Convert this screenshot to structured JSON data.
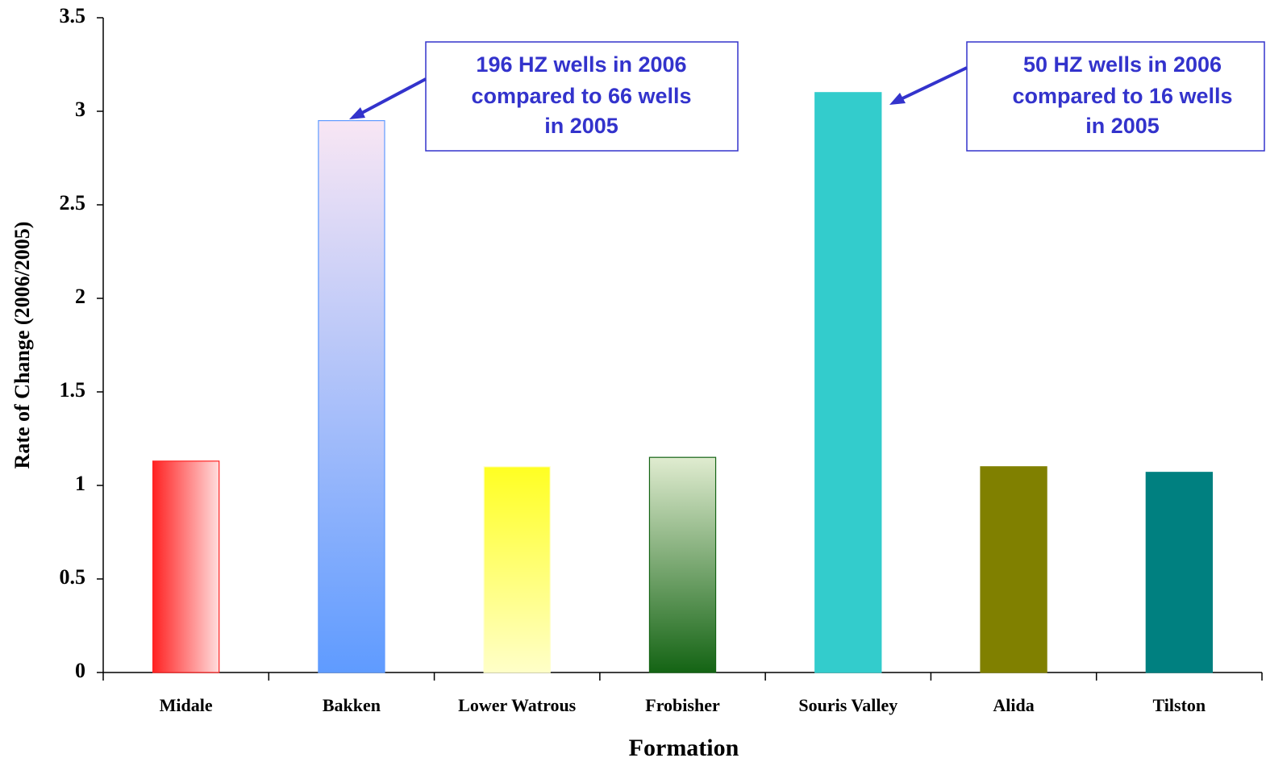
{
  "chart_data": {
    "type": "bar",
    "categories": [
      "Midale",
      "Bakken",
      "Lower Watrous",
      "Frobisher",
      "Souris Valley",
      "Alida",
      "Tilston"
    ],
    "values": [
      1.13,
      2.95,
      1.1,
      1.15,
      3.1,
      1.1,
      1.07
    ],
    "colors": [
      {
        "start": "#ff2222",
        "end": "#ffdddd",
        "direction": "horizontal"
      },
      {
        "start": "#f8e6f4",
        "end": "#5f9bff",
        "direction": "vertical"
      },
      {
        "start": "#ffff22",
        "end": "#ffffc8",
        "direction": "vertical"
      },
      {
        "start": "#e0ecd0",
        "end": "#146414",
        "direction": "vertical"
      },
      {
        "start": "#33cccc",
        "end": "#33cccc",
        "direction": "vertical"
      },
      {
        "start": "#808000",
        "end": "#808000",
        "direction": "vertical"
      },
      {
        "start": "#008080",
        "end": "#008080",
        "direction": "vertical"
      }
    ],
    "ylim": [
      0,
      3.5
    ],
    "yticks": [
      0,
      0.5,
      1,
      1.5,
      2,
      2.5,
      3,
      3.5
    ],
    "ylabel": "Rate of Change (2006/2005)",
    "xlabel": "Formation",
    "grid": false,
    "annotations": [
      {
        "lines": [
          "196 HZ wells in 2006",
          "compared to 66 wells",
          "in 2005"
        ]
      },
      {
        "lines": [
          "50 HZ wells in 2006",
          "compared to 16 wells",
          "in 2005"
        ]
      }
    ]
  }
}
